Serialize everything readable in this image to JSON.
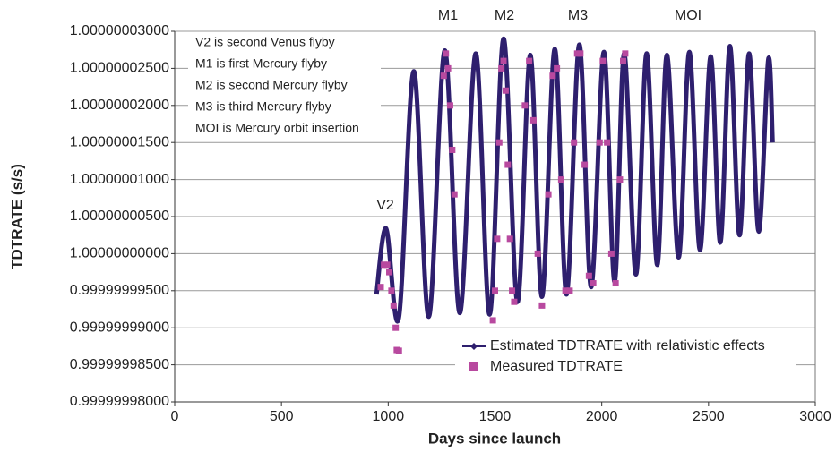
{
  "chart_data": {
    "type": "line",
    "x_label": "Days since launch",
    "y_label": "TDTRATE (s/s)",
    "xlim": [
      0,
      3000
    ],
    "xticks": [
      0,
      500,
      1000,
      1500,
      2000,
      2500,
      3000
    ],
    "ylim": [
      0.99999998,
      1.00000003
    ],
    "yticks": [
      {
        "value": 0.99999998,
        "label": "0.99999998000"
      },
      {
        "value": 0.999999985,
        "label": "0.99999998500"
      },
      {
        "value": 0.99999999,
        "label": "0.99999999000"
      },
      {
        "value": 0.999999995,
        "label": "0.99999999500"
      },
      {
        "value": 1.0,
        "label": "1.00000000000"
      },
      {
        "value": 1.000000005,
        "label": "1.00000000500"
      },
      {
        "value": 1.00000001,
        "label": "1.00000001000"
      },
      {
        "value": 1.000000015,
        "label": "1.00000001500"
      },
      {
        "value": 1.00000002,
        "label": "1.00000002000"
      },
      {
        "value": 1.000000025,
        "label": "1.00000002500"
      },
      {
        "value": 1.00000003,
        "label": "1.00000003000"
      }
    ],
    "grid": true,
    "notes": [
      "V2 is second Venus flyby",
      "M1 is first Mercury flyby",
      "M2 is second Mercury flyby",
      "M3 is third Mercury flyby",
      "MOI is Mercury orbit insertion"
    ],
    "annotations": [
      "V2",
      "M1",
      "M2",
      "M3",
      "MOI"
    ],
    "series": [
      {
        "name": "Estimated TDTRATE with relativistic effects",
        "color": "#2e1f6e",
        "marker": "diamond",
        "x": [
          945,
          990,
          1050,
          1120,
          1190,
          1265,
          1335,
          1410,
          1475,
          1540,
          1605,
          1665,
          1720,
          1780,
          1835,
          1895,
          1950,
          2010,
          2060,
          2105,
          2160,
          2210,
          2260,
          2305,
          2360,
          2410,
          2460,
          2510,
          2555,
          2600,
          2645,
          2690,
          2735,
          2780,
          2800
        ],
        "values": [
          0.9999999945,
          1.0000000034,
          0.9999999914,
          1.0000000246,
          0.9999999915,
          1.0000000274,
          0.999999992,
          1.000000027,
          0.9999999918,
          1.000000029,
          0.9999999935,
          1.0000000268,
          0.9999999942,
          1.0000000276,
          0.9999999945,
          1.0000000282,
          0.9999999955,
          1.0000000272,
          0.9999999962,
          1.000000027,
          0.9999999972,
          1.000000027,
          0.9999999985,
          1.0000000268,
          0.9999999995,
          1.0000000272,
          1.0000000005,
          1.0000000266,
          1.0000000015,
          1.000000028,
          1.0000000025,
          1.000000027,
          1.000000003,
          1.0000000262,
          1.000000015
        ]
      },
      {
        "name": "Measured TDTRATE",
        "color": "#b8499f",
        "marker": "square",
        "x": [
          965,
          980,
          995,
          1005,
          1015,
          1025,
          1035,
          1040,
          1050,
          1260,
          1270,
          1280,
          1290,
          1300,
          1310,
          1490,
          1500,
          1510,
          1520,
          1530,
          1540,
          1550,
          1560,
          1570,
          1580,
          1590,
          1640,
          1660,
          1680,
          1700,
          1720,
          1750,
          1770,
          1790,
          1810,
          1830,
          1850,
          1870,
          1885,
          1900,
          1920,
          1940,
          1960,
          1990,
          2005,
          2025,
          2045,
          2065,
          2085,
          2100,
          2110
        ],
        "values": [
          0.9999999955,
          0.9999999985,
          0.9999999985,
          0.9999999975,
          0.999999995,
          0.999999993,
          0.99999999,
          0.999999987,
          0.9999999869,
          1.000000024,
          1.000000027,
          1.000000025,
          1.00000002,
          1.000000014,
          1.000000008,
          0.999999991,
          0.999999995,
          1.000000002,
          1.000000015,
          1.000000025,
          1.000000026,
          1.000000022,
          1.000000012,
          1.000000002,
          0.999999995,
          0.9999999935,
          1.00000002,
          1.000000026,
          1.000000018,
          1.0,
          0.999999993,
          1.000000008,
          1.000000024,
          1.000000025,
          1.00000001,
          0.999999995,
          0.999999995,
          1.000000015,
          1.000000027,
          1.000000027,
          1.000000012,
          0.999999997,
          0.999999996,
          1.000000015,
          1.000000026,
          1.000000015,
          1.0,
          0.999999996,
          1.00000001,
          1.000000026,
          1.000000027
        ]
      }
    ]
  }
}
